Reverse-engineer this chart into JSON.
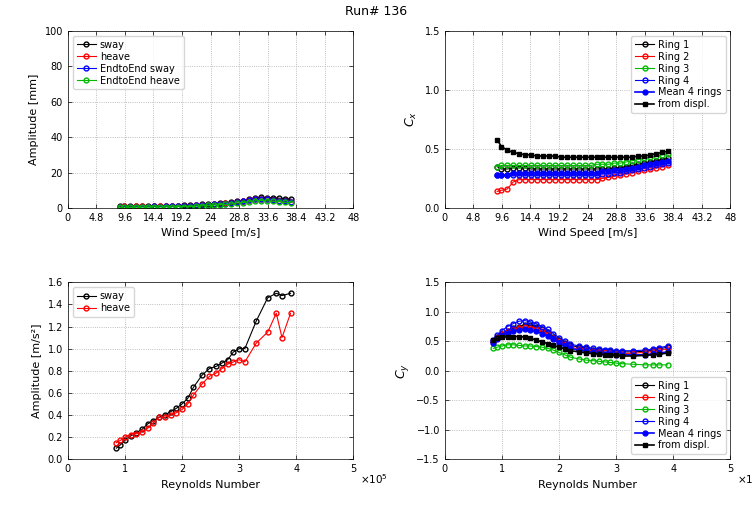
{
  "title": "Run# 136",
  "ws_ticks": [
    0,
    4.8,
    9.6,
    14.4,
    19.2,
    24,
    28.8,
    33.6,
    38.4,
    43.2,
    48
  ],
  "re_ticks": [
    0,
    1,
    2,
    3,
    4,
    5
  ],
  "top_left": {
    "xlabel": "Wind Speed [m/s]",
    "ylabel": "Amplitude [mm]",
    "ylim": [
      0,
      100
    ],
    "xlim": [
      0,
      48
    ],
    "legend": [
      "sway",
      "heave",
      "EndtoEnd sway",
      "EndtoEnd heave"
    ],
    "colors": [
      "#000000",
      "#ff0000",
      "#0000ff",
      "#00bb00"
    ],
    "ws": [
      8.8,
      9.5,
      10.5,
      11.5,
      12.5,
      13.5,
      14.5,
      15.5,
      16.5,
      17.5,
      18.5,
      19.5,
      20.5,
      21.5,
      22.5,
      23.5,
      24.5,
      25.5,
      26.5,
      27.5,
      28.5,
      29.5,
      30.5,
      31.5,
      32.5,
      33.5,
      34.5,
      35.5,
      36.5,
      37.5
    ],
    "sway": [
      1.0,
      1.1,
      0.9,
      1.0,
      1.0,
      1.0,
      1.2,
      1.1,
      1.2,
      1.2,
      1.3,
      1.5,
      1.5,
      1.8,
      2.0,
      2.2,
      2.5,
      2.8,
      3.0,
      3.2,
      4.0,
      4.2,
      5.0,
      5.5,
      6.0,
      5.8,
      5.8,
      5.5,
      5.2,
      5.0
    ],
    "heave": [
      0.8,
      0.9,
      0.8,
      0.9,
      0.9,
      0.8,
      1.0,
      0.9,
      1.0,
      1.0,
      1.1,
      1.2,
      1.2,
      1.5,
      1.7,
      1.9,
      2.2,
      2.5,
      2.7,
      2.9,
      3.5,
      3.8,
      4.5,
      4.8,
      5.0,
      4.8,
      4.5,
      4.0,
      3.8,
      3.5
    ],
    "e2e_sway": [
      0.5,
      0.8,
      0.6,
      0.7,
      0.8,
      0.7,
      0.9,
      0.8,
      0.9,
      0.9,
      1.0,
      1.1,
      1.1,
      1.4,
      1.6,
      1.8,
      2.0,
      2.3,
      2.5,
      2.7,
      3.5,
      3.7,
      4.3,
      4.8,
      5.0,
      4.8,
      4.5,
      4.2,
      3.8,
      3.5
    ],
    "e2e_heave": [
      0.3,
      0.5,
      0.4,
      0.5,
      0.5,
      0.5,
      0.6,
      0.5,
      0.6,
      0.6,
      0.7,
      0.8,
      0.8,
      1.0,
      1.2,
      1.4,
      1.6,
      1.8,
      2.0,
      2.2,
      2.8,
      3.0,
      3.5,
      4.0,
      4.2,
      4.0,
      3.8,
      3.5,
      3.2,
      3.0
    ]
  },
  "top_right": {
    "xlabel": "Wind Speed [m/s]",
    "ylabel": "C_x",
    "ylim": [
      0,
      1.5
    ],
    "xlim": [
      0,
      48
    ],
    "legend": [
      "Ring 1",
      "Ring 2",
      "Ring 3",
      "Ring 4",
      "Mean 4 rings",
      "from displ."
    ],
    "colors": [
      "#000000",
      "#ff0000",
      "#00bb00",
      "#0000ff",
      "#0000ff",
      "#000000"
    ],
    "marker_filled": [
      false,
      false,
      false,
      false,
      true,
      true
    ],
    "marker_styles": [
      "o",
      "o",
      "o",
      "o",
      "o",
      "s"
    ],
    "ws": [
      8.8,
      9.5,
      10.5,
      11.5,
      12.5,
      13.5,
      14.5,
      15.5,
      16.5,
      17.5,
      18.5,
      19.5,
      20.5,
      21.5,
      22.5,
      23.5,
      24.5,
      25.5,
      26.5,
      27.5,
      28.5,
      29.5,
      30.5,
      31.5,
      32.5,
      33.5,
      34.5,
      35.5,
      36.5,
      37.5
    ],
    "ring1": [
      0.35,
      0.33,
      0.33,
      0.34,
      0.34,
      0.34,
      0.33,
      0.33,
      0.33,
      0.33,
      0.33,
      0.33,
      0.33,
      0.33,
      0.33,
      0.33,
      0.33,
      0.33,
      0.33,
      0.33,
      0.34,
      0.34,
      0.35,
      0.36,
      0.37,
      0.38,
      0.39,
      0.4,
      0.41,
      0.42
    ],
    "ring2": [
      0.14,
      0.15,
      0.16,
      0.22,
      0.24,
      0.24,
      0.24,
      0.24,
      0.24,
      0.24,
      0.24,
      0.24,
      0.24,
      0.24,
      0.24,
      0.24,
      0.24,
      0.24,
      0.25,
      0.26,
      0.27,
      0.28,
      0.29,
      0.3,
      0.31,
      0.32,
      0.33,
      0.34,
      0.35,
      0.36
    ],
    "ring3": [
      0.35,
      0.36,
      0.36,
      0.36,
      0.36,
      0.36,
      0.36,
      0.36,
      0.36,
      0.36,
      0.36,
      0.36,
      0.36,
      0.36,
      0.36,
      0.36,
      0.36,
      0.37,
      0.37,
      0.37,
      0.38,
      0.38,
      0.39,
      0.4,
      0.41,
      0.42,
      0.43,
      0.44,
      0.45,
      0.46
    ],
    "ring4": [
      0.28,
      0.28,
      0.28,
      0.28,
      0.28,
      0.28,
      0.28,
      0.28,
      0.28,
      0.28,
      0.28,
      0.28,
      0.28,
      0.28,
      0.28,
      0.28,
      0.28,
      0.28,
      0.29,
      0.29,
      0.3,
      0.3,
      0.31,
      0.32,
      0.33,
      0.34,
      0.35,
      0.36,
      0.37,
      0.38
    ],
    "mean4": [
      0.28,
      0.28,
      0.28,
      0.3,
      0.3,
      0.3,
      0.3,
      0.3,
      0.3,
      0.3,
      0.3,
      0.3,
      0.3,
      0.3,
      0.3,
      0.3,
      0.3,
      0.3,
      0.31,
      0.31,
      0.32,
      0.32,
      0.33,
      0.34,
      0.35,
      0.36,
      0.37,
      0.38,
      0.39,
      0.4
    ],
    "displ": [
      0.58,
      0.52,
      0.49,
      0.47,
      0.46,
      0.45,
      0.45,
      0.44,
      0.44,
      0.44,
      0.44,
      0.43,
      0.43,
      0.43,
      0.43,
      0.43,
      0.43,
      0.43,
      0.43,
      0.43,
      0.43,
      0.43,
      0.43,
      0.43,
      0.44,
      0.44,
      0.45,
      0.46,
      0.47,
      0.48
    ]
  },
  "bot_left": {
    "xlabel": "Reynolds Number",
    "ylabel": "Amplitude [m/s²]",
    "ylim": [
      0,
      1.6
    ],
    "xlim": [
      0,
      500000
    ],
    "legend": [
      "sway",
      "heave"
    ],
    "colors": [
      "#000000",
      "#ff0000"
    ],
    "re": [
      85000,
      92000,
      100000,
      110000,
      120000,
      130000,
      140000,
      150000,
      160000,
      170000,
      180000,
      190000,
      200000,
      210000,
      220000,
      235000,
      248000,
      260000,
      270000,
      280000,
      290000,
      300000,
      310000,
      330000,
      350000,
      365000,
      375000,
      390000
    ],
    "sway": [
      0.1,
      0.13,
      0.17,
      0.21,
      0.24,
      0.27,
      0.32,
      0.35,
      0.38,
      0.4,
      0.43,
      0.46,
      0.5,
      0.55,
      0.65,
      0.76,
      0.82,
      0.84,
      0.87,
      0.9,
      0.97,
      1.0,
      1.0,
      1.25,
      1.46,
      1.5,
      1.48,
      1.5
    ],
    "heave": [
      0.15,
      0.17,
      0.2,
      0.22,
      0.23,
      0.25,
      0.28,
      0.33,
      0.38,
      0.38,
      0.4,
      0.42,
      0.45,
      0.5,
      0.58,
      0.68,
      0.75,
      0.78,
      0.82,
      0.86,
      0.88,
      0.9,
      0.88,
      1.05,
      1.15,
      1.32,
      1.1,
      1.32
    ]
  },
  "bot_right": {
    "xlabel": "Reynolds Number",
    "ylabel": "C_y",
    "ylim": [
      -1.5,
      1.5
    ],
    "xlim": [
      0,
      500000
    ],
    "legend": [
      "Ring 1",
      "Ring 2",
      "Ring 3",
      "Ring 4",
      "Mean 4 rings",
      "from displ."
    ],
    "colors": [
      "#000000",
      "#ff0000",
      "#00bb00",
      "#0000ff",
      "#0000ff",
      "#000000"
    ],
    "marker_filled": [
      false,
      false,
      false,
      false,
      true,
      true
    ],
    "marker_styles": [
      "o",
      "o",
      "o",
      "o",
      "o",
      "s"
    ],
    "re": [
      85000,
      92000,
      100000,
      110000,
      120000,
      130000,
      140000,
      150000,
      160000,
      170000,
      180000,
      190000,
      200000,
      210000,
      220000,
      235000,
      248000,
      260000,
      270000,
      280000,
      290000,
      300000,
      310000,
      330000,
      350000,
      365000,
      375000,
      390000
    ],
    "ring1": [
      0.5,
      0.58,
      0.63,
      0.68,
      0.72,
      0.75,
      0.78,
      0.77,
      0.75,
      0.7,
      0.65,
      0.58,
      0.52,
      0.47,
      0.43,
      0.4,
      0.38,
      0.36,
      0.35,
      0.34,
      0.33,
      0.32,
      0.32,
      0.32,
      0.33,
      0.35,
      0.37,
      0.4
    ],
    "ring2": [
      0.48,
      0.55,
      0.62,
      0.67,
      0.7,
      0.73,
      0.74,
      0.73,
      0.71,
      0.67,
      0.62,
      0.56,
      0.5,
      0.45,
      0.4,
      0.37,
      0.35,
      0.33,
      0.32,
      0.31,
      0.3,
      0.29,
      0.29,
      0.3,
      0.31,
      0.33,
      0.35,
      0.37
    ],
    "ring3": [
      0.38,
      0.4,
      0.42,
      0.44,
      0.44,
      0.43,
      0.42,
      0.42,
      0.41,
      0.4,
      0.38,
      0.35,
      0.31,
      0.27,
      0.23,
      0.2,
      0.18,
      0.17,
      0.16,
      0.15,
      0.14,
      0.13,
      0.12,
      0.11,
      0.1,
      0.1,
      0.1,
      0.1
    ],
    "ring4": [
      0.52,
      0.6,
      0.68,
      0.75,
      0.8,
      0.84,
      0.85,
      0.83,
      0.8,
      0.75,
      0.7,
      0.63,
      0.56,
      0.5,
      0.45,
      0.42,
      0.4,
      0.38,
      0.37,
      0.36,
      0.35,
      0.34,
      0.34,
      0.34,
      0.35,
      0.37,
      0.39,
      0.42
    ],
    "mean4": [
      0.47,
      0.53,
      0.59,
      0.64,
      0.67,
      0.69,
      0.7,
      0.69,
      0.67,
      0.63,
      0.59,
      0.53,
      0.47,
      0.42,
      0.38,
      0.35,
      0.33,
      0.31,
      0.3,
      0.29,
      0.28,
      0.27,
      0.27,
      0.27,
      0.27,
      0.29,
      0.3,
      0.32
    ],
    "displ": [
      0.52,
      0.55,
      0.57,
      0.58,
      0.58,
      0.58,
      0.57,
      0.55,
      0.52,
      0.49,
      0.46,
      0.43,
      0.4,
      0.37,
      0.34,
      0.32,
      0.3,
      0.29,
      0.28,
      0.27,
      0.26,
      0.26,
      0.25,
      0.25,
      0.26,
      0.27,
      0.28,
      0.3
    ]
  }
}
